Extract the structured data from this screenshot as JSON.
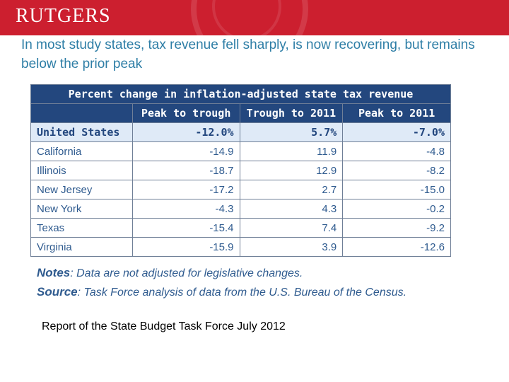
{
  "header": {
    "logo_text": "RUTGERS",
    "headline": "In most study states, tax revenue fell sharply, is now recovering, but remains below the prior peak"
  },
  "table": {
    "title": "Percent change in inflation-adjusted state tax revenue",
    "columns": [
      "",
      "Peak to trough",
      "Trough to 2011",
      "Peak to 2011"
    ],
    "summary_row": {
      "state": "United States",
      "values": [
        "-12.0%",
        "5.7%",
        "-7.0%"
      ]
    },
    "rows": [
      {
        "state": "California",
        "values": [
          "-14.9",
          "11.9",
          "-4.8"
        ]
      },
      {
        "state": "Illinois",
        "values": [
          "-18.7",
          "12.9",
          "-8.2"
        ]
      },
      {
        "state": "New Jersey",
        "values": [
          "-17.2",
          "2.7",
          "-15.0"
        ]
      },
      {
        "state": "New York",
        "values": [
          "-4.3",
          "4.3",
          "-0.2"
        ]
      },
      {
        "state": "Texas",
        "values": [
          "-15.4",
          "7.4",
          "-9.2"
        ]
      },
      {
        "state": "Virginia",
        "values": [
          "-15.9",
          "3.9",
          "-12.6"
        ]
      }
    ]
  },
  "notes": {
    "notes_label": "Notes",
    "notes_text": ": Data are not adjusted for legislative changes.",
    "source_label": "Source",
    "source_text": ": Task Force analysis of data from the U.S. Bureau of the Census."
  },
  "footer": {
    "text": "Report of the State Budget Task Force July 2012"
  }
}
